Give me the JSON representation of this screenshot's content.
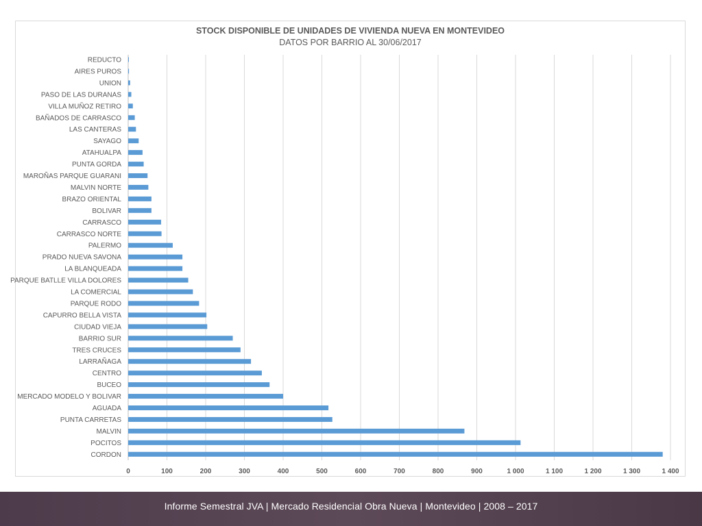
{
  "chart_data": {
    "type": "bar",
    "orientation": "horizontal",
    "title": "STOCK DISPONIBLE DE UNIDADES DE VIVIENDA NUEVA EN MONTEVIDEO",
    "subtitle": "DATOS POR BARRIO AL 30/06/2017",
    "categories": [
      "REDUCTO",
      "AIRES PUROS",
      "UNION",
      "PASO DE LAS DURANAS",
      "VILLA MUÑOZ RETIRO",
      "BAÑADOS DE CARRASCO",
      "LAS CANTERAS",
      "SAYAGO",
      "ATAHUALPA",
      "PUNTA GORDA",
      "MAROÑAS PARQUE GUARANI",
      "MALVIN NORTE",
      "BRAZO ORIENTAL",
      "BOLIVAR",
      "CARRASCO",
      "CARRASCO NORTE",
      "PALERMO",
      "PRADO NUEVA SAVONA",
      "LA BLANQUEADA",
      "PARQUE BATLLE VILLA DOLORES",
      "LA COMERCIAL",
      "PARQUE RODO",
      "CAPURRO BELLA VISTA",
      "CIUDAD VIEJA",
      "BARRIO SUR",
      "TRES CRUCES",
      "LARRAÑAGA",
      "CENTRO",
      "BUCEO",
      "MERCADO MODELO Y BOLIVAR",
      "AGUADA",
      "PUNTA CARRETAS",
      "MALVIN",
      "POCITOS",
      "CORDON"
    ],
    "values": [
      1,
      2,
      5,
      8,
      12,
      17,
      20,
      27,
      37,
      40,
      50,
      52,
      60,
      60,
      85,
      86,
      115,
      140,
      140,
      155,
      167,
      183,
      202,
      204,
      270,
      290,
      317,
      345,
      365,
      400,
      517,
      527,
      868,
      1013,
      1380
    ],
    "xlim": [
      0,
      1400
    ],
    "x_ticks": [
      0,
      100,
      200,
      300,
      400,
      500,
      600,
      700,
      800,
      900,
      1000,
      1100,
      1200,
      1300,
      1400
    ],
    "x_tick_labels": [
      "0",
      "100",
      "200",
      "300",
      "400",
      "500",
      "600",
      "700",
      "800",
      "900",
      "1 000",
      "1 100",
      "1 200",
      "1 300",
      "1 400"
    ],
    "grid": "vertical",
    "bar_color": "#5b9bd5"
  },
  "footer": {
    "text": "Informe Semestral JVA | Mercado Residencial Obra Nueva | Montevideo | 2008 – 2017"
  }
}
